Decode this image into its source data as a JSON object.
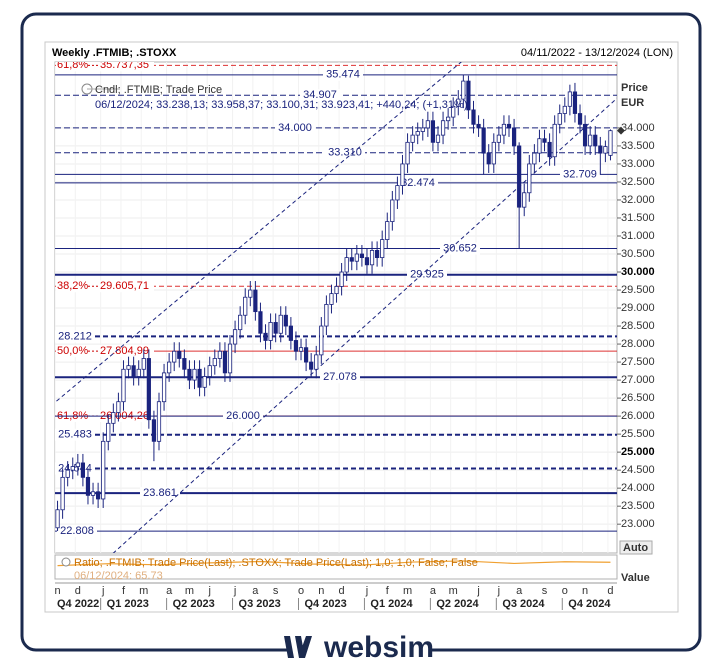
{
  "header": {
    "title": "Weekly .FTMIB; .STOXX",
    "range": "04/11/2022 - 13/12/2024 (LON)"
  },
  "chart_data": {
    "type": "candlestick",
    "legend": [
      "Cndl; .FTMIB; Trade Price",
      "06/12/2024; 33.238,13; 33.958,37; 33.100,31; 33.923,41; +440,24; (+1,31%)"
    ],
    "y_axis_title": [
      "Price",
      "EUR"
    ],
    "auto_button": "Auto",
    "categories": [
      "n",
      null,
      null,
      null,
      "d",
      null,
      null,
      null,
      null,
      "j",
      null,
      null,
      null,
      "f",
      null,
      null,
      null,
      "m",
      null,
      null,
      null,
      null,
      "a",
      null,
      null,
      null,
      "m",
      null,
      null,
      null,
      "j",
      null,
      null,
      null,
      null,
      "j",
      null,
      null,
      null,
      "a",
      null,
      null,
      null,
      "s",
      null,
      null,
      null,
      null,
      "o",
      null,
      null,
      null,
      "n",
      null,
      null,
      null,
      "d",
      null,
      null,
      null,
      null,
      "j",
      null,
      null,
      null,
      "f",
      null,
      null,
      null,
      "m",
      null,
      null,
      null,
      null,
      "a",
      null,
      null,
      null,
      "m",
      null,
      null,
      null,
      null,
      "j",
      null,
      null,
      null,
      "j",
      null,
      null,
      null,
      "a",
      null,
      null,
      null,
      null,
      "s",
      null,
      null,
      null,
      "o",
      null,
      null,
      null,
      "n",
      null,
      null,
      null,
      null,
      "d"
    ],
    "quarters": [
      "Q4 2022",
      null,
      null,
      null,
      null,
      null,
      null,
      null,
      null,
      "Q1 2023",
      null,
      null,
      null,
      null,
      null,
      null,
      null,
      null,
      null,
      null,
      null,
      null,
      "Q2 2023",
      null,
      null,
      null,
      null,
      null,
      null,
      null,
      null,
      null,
      null,
      null,
      null,
      "Q3 2023",
      null,
      null,
      null,
      null,
      null,
      null,
      null,
      null,
      null,
      null,
      null,
      null,
      "Q4 2023",
      null,
      null,
      null,
      null,
      null,
      null,
      null,
      null,
      null,
      null,
      null,
      null,
      "Q1 2024",
      null,
      null,
      null,
      null,
      null,
      null,
      null,
      null,
      null,
      null,
      null,
      null,
      "Q2 2024",
      null,
      null,
      null,
      null,
      null,
      null,
      null,
      null,
      null,
      null,
      null,
      null,
      "Q3 2024",
      null,
      null,
      null,
      null,
      null,
      null,
      null,
      null,
      null,
      null,
      null,
      null,
      "Q4 2024",
      null,
      null,
      null,
      null,
      null,
      null,
      null,
      null,
      null
    ],
    "series": [
      {
        "name": ".FTMIB",
        "color": "#1a237e",
        "ohlc": [
          [
            22900,
            23650,
            22810,
            23400
          ],
          [
            23400,
            24550,
            23150,
            24300
          ],
          [
            24300,
            24750,
            24050,
            24500
          ],
          [
            24500,
            24850,
            24250,
            24600
          ],
          [
            24600,
            24950,
            24350,
            24700
          ],
          [
            24700,
            24950,
            24050,
            24300
          ],
          [
            24300,
            24550,
            23550,
            23800
          ],
          [
            23800,
            24150,
            23550,
            23900
          ],
          [
            23900,
            24150,
            23450,
            23700
          ],
          [
            23700,
            25550,
            23450,
            25300
          ],
          [
            25300,
            26050,
            25050,
            25800
          ],
          [
            25800,
            26350,
            25550,
            26100
          ],
          [
            26100,
            26650,
            25850,
            26400
          ],
          [
            26400,
            27550,
            26150,
            27300
          ],
          [
            27300,
            27650,
            27050,
            27400
          ],
          [
            27400,
            27650,
            26850,
            27100
          ],
          [
            27100,
            27550,
            26850,
            27300
          ],
          [
            27300,
            27850,
            27050,
            27600
          ],
          [
            27600,
            27850,
            25650,
            25900
          ],
          [
            25900,
            26150,
            24750,
            25300
          ],
          [
            25300,
            26650,
            25050,
            26400
          ],
          [
            26400,
            27450,
            26150,
            27200
          ],
          [
            27200,
            27750,
            26950,
            27500
          ],
          [
            27500,
            28050,
            27250,
            27800
          ],
          [
            27800,
            28050,
            27350,
            27600
          ],
          [
            27600,
            27850,
            27050,
            27300
          ],
          [
            27300,
            27550,
            26750,
            27000
          ],
          [
            27000,
            27550,
            26750,
            27300
          ],
          [
            27300,
            27550,
            26550,
            26800
          ],
          [
            26800,
            27350,
            26550,
            27100
          ],
          [
            27100,
            27650,
            26850,
            27400
          ],
          [
            27400,
            27850,
            27150,
            27600
          ],
          [
            27600,
            28050,
            27350,
            27800
          ],
          [
            27800,
            28050,
            26950,
            27200
          ],
          [
            27200,
            28250,
            26950,
            28000
          ],
          [
            28000,
            28650,
            27750,
            28400
          ],
          [
            28400,
            29050,
            28150,
            28800
          ],
          [
            28800,
            29550,
            28550,
            29300
          ],
          [
            29300,
            29750,
            29050,
            29500
          ],
          [
            29500,
            29750,
            28650,
            28900
          ],
          [
            28900,
            29150,
            28050,
            28300
          ],
          [
            28300,
            28550,
            27850,
            28100
          ],
          [
            28100,
            28850,
            27850,
            28600
          ],
          [
            28600,
            28850,
            28050,
            28300
          ],
          [
            28300,
            29050,
            28050,
            28800
          ],
          [
            28800,
            29050,
            28250,
            28500
          ],
          [
            28500,
            28750,
            27850,
            28100
          ],
          [
            28100,
            28350,
            27550,
            27800
          ],
          [
            27800,
            28150,
            27550,
            27900
          ],
          [
            27900,
            28150,
            27250,
            27500
          ],
          [
            27500,
            27750,
            27080,
            27300
          ],
          [
            27300,
            27950,
            27050,
            27700
          ],
          [
            27700,
            28750,
            27450,
            28500
          ],
          [
            28500,
            29350,
            28250,
            29100
          ],
          [
            29100,
            29650,
            28850,
            29400
          ],
          [
            29400,
            29850,
            29150,
            29600
          ],
          [
            29600,
            30250,
            29350,
            30000
          ],
          [
            30000,
            30650,
            29750,
            30400
          ],
          [
            30400,
            30650,
            30050,
            30300
          ],
          [
            30300,
            30750,
            30050,
            30500
          ],
          [
            30500,
            30750,
            30150,
            30400
          ],
          [
            30400,
            30650,
            29950,
            30200
          ],
          [
            30200,
            30850,
            29950,
            30600
          ],
          [
            30600,
            30850,
            30150,
            30400
          ],
          [
            30400,
            31150,
            30150,
            30900
          ],
          [
            30900,
            31650,
            30650,
            31400
          ],
          [
            31400,
            32250,
            31150,
            32000
          ],
          [
            32000,
            32650,
            31750,
            32400
          ],
          [
            32400,
            33250,
            32150,
            33000
          ],
          [
            33000,
            33850,
            32750,
            33600
          ],
          [
            33600,
            34050,
            33350,
            33800
          ],
          [
            33800,
            34150,
            33550,
            33900
          ],
          [
            33900,
            34250,
            33650,
            34000
          ],
          [
            34000,
            34450,
            33750,
            34200
          ],
          [
            34200,
            34450,
            33350,
            33600
          ],
          [
            33600,
            34050,
            33350,
            33800
          ],
          [
            33800,
            34450,
            33550,
            34200
          ],
          [
            34200,
            34550,
            33950,
            34300
          ],
          [
            34300,
            34850,
            34050,
            34600
          ],
          [
            34600,
            35050,
            34350,
            34800
          ],
          [
            34800,
            35470,
            34550,
            35300
          ],
          [
            35300,
            35450,
            34250,
            34500
          ],
          [
            34500,
            34750,
            33850,
            34100
          ],
          [
            34100,
            34350,
            33750,
            34000
          ],
          [
            34000,
            34250,
            32700,
            33300
          ],
          [
            33300,
            33550,
            32750,
            33000
          ],
          [
            33000,
            33850,
            32750,
            33600
          ],
          [
            33600,
            34050,
            33350,
            33800
          ],
          [
            33800,
            34350,
            33550,
            34100
          ],
          [
            34100,
            34350,
            33750,
            34000
          ],
          [
            34000,
            34250,
            33250,
            33500
          ],
          [
            33500,
            33600,
            30650,
            31800
          ],
          [
            31800,
            32450,
            31550,
            32200
          ],
          [
            32200,
            33250,
            31950,
            33000
          ],
          [
            33000,
            33550,
            32750,
            33300
          ],
          [
            33300,
            33950,
            33050,
            33700
          ],
          [
            33700,
            33950,
            33350,
            33600
          ],
          [
            33600,
            33850,
            32950,
            33200
          ],
          [
            33200,
            34350,
            32950,
            34100
          ],
          [
            34100,
            34650,
            33850,
            34400
          ],
          [
            34400,
            34850,
            34150,
            34600
          ],
          [
            34600,
            35200,
            34350,
            35000
          ],
          [
            35000,
            35250,
            34150,
            34400
          ],
          [
            34400,
            34650,
            33850,
            34100
          ],
          [
            34100,
            34350,
            33250,
            33500
          ],
          [
            33500,
            34050,
            33250,
            33800
          ],
          [
            33800,
            34050,
            33250,
            33500
          ],
          [
            33500,
            33750,
            32700,
            33300
          ],
          [
            33300,
            33650,
            33050,
            33483.17
          ],
          [
            33238.13,
            33958.37,
            33100.31,
            33923.41
          ]
        ]
      }
    ],
    "ylim": [
      22200,
      35830
    ],
    "yticks": [
      {
        "value": 23000,
        "label": "23.000"
      },
      {
        "value": 23500,
        "label": "23.500"
      },
      {
        "value": 24000,
        "label": "24.000"
      },
      {
        "value": 24500,
        "label": "24.500"
      },
      {
        "value": 25000,
        "label": "25.000"
      },
      {
        "value": 25500,
        "label": "25.500"
      },
      {
        "value": 26000,
        "label": "26.000"
      },
      {
        "value": 26500,
        "label": "26.500"
      },
      {
        "value": 27000,
        "label": "27.000"
      },
      {
        "value": 27500,
        "label": "27.500"
      },
      {
        "value": 28000,
        "label": "28.000"
      },
      {
        "value": 28500,
        "label": "28.500"
      },
      {
        "value": 29000,
        "label": "29.000"
      },
      {
        "value": 29500,
        "label": "29.500"
      },
      {
        "value": 30000,
        "label": "30.000"
      },
      {
        "value": 30500,
        "label": "30.500"
      },
      {
        "value": 31000,
        "label": "31.000"
      },
      {
        "value": 31500,
        "label": "31.500"
      },
      {
        "value": 32000,
        "label": "32.000"
      },
      {
        "value": 32500,
        "label": "32.500"
      },
      {
        "value": 33000,
        "label": "33.000"
      },
      {
        "value": 33500,
        "label": "33.500"
      },
      {
        "value": 34000,
        "label": "34.000"
      }
    ],
    "major_yticks": [
      25000,
      30000
    ],
    "grid": true,
    "levels": [
      {
        "value": 35474,
        "label": "35.474",
        "style": "solid"
      },
      {
        "value": 34907,
        "label": "34.907",
        "style": "dashed"
      },
      {
        "value": 34000,
        "label": "34.000",
        "style": "dashed"
      },
      {
        "value": 33310,
        "label": "33.310",
        "style": "dashed"
      },
      {
        "value": 32709,
        "label": "32.709",
        "style": "solid"
      },
      {
        "value": 32474,
        "label": "32.474",
        "style": "solid"
      },
      {
        "value": 30652,
        "label": "30.652",
        "style": "solid"
      },
      {
        "value": 29925,
        "label": "29.925",
        "style": "thick"
      },
      {
        "value": 28212,
        "label": "28.212",
        "style": "thick-dashed"
      },
      {
        "value": 27078,
        "label": "27.078",
        "style": "thick"
      },
      {
        "value": 26000,
        "label": "26.000",
        "style": "solid"
      },
      {
        "value": 25483,
        "label": "25.483",
        "style": "thick-dashed"
      },
      {
        "value": 24544,
        "label": "24.544",
        "style": "thick-dashed"
      },
      {
        "value": 23861,
        "label": "23.861",
        "style": "thick"
      },
      {
        "value": 22808,
        "label": "22.808",
        "style": "solid"
      }
    ],
    "fibonacci": [
      {
        "pct": "61,8%",
        "value": {
          "value": 35737.35,
          "label": "35.737,35"
        },
        "style": "dashed"
      },
      {
        "pct": "38,2%",
        "value": {
          "value": 29605.71,
          "label": "29.605,71"
        },
        "style": "dashed"
      },
      {
        "pct": "50,0%",
        "value": {
          "value": 27804.99,
          "label": "27.804,99"
        },
        "style": "solid"
      },
      {
        "pct": "61,8%",
        "value": {
          "value": 26004.26,
          "label": "26.004,26"
        },
        "style": "solid"
      }
    ],
    "trendlines": [
      {
        "x": [
          0,
          80
        ],
        "y": [
          26440,
          35880
        ]
      },
      {
        "x": [
          10,
          109
        ],
        "y": [
          22070,
          34660
        ]
      }
    ],
    "ratio_panel": {
      "type": "line",
      "legend": "Ratio; .FTMIB; Trade Price(Last); .STOXX; Trade Price(Last);  1,0; 1,0; False; False",
      "last": "06/12/2024; 65,73",
      "axis_title": "Value",
      "color": "#f0a030",
      "x": [
        0,
        10,
        20,
        30,
        40,
        50,
        60,
        70,
        80,
        90,
        100,
        109
      ],
      "values": [
        64.5,
        65.2,
        64.8,
        65.5,
        66.0,
        65.1,
        64.7,
        65.8,
        66.2,
        65.3,
        65.9,
        65.73
      ],
      "ylim": [
        60,
        68
      ]
    }
  }
}
